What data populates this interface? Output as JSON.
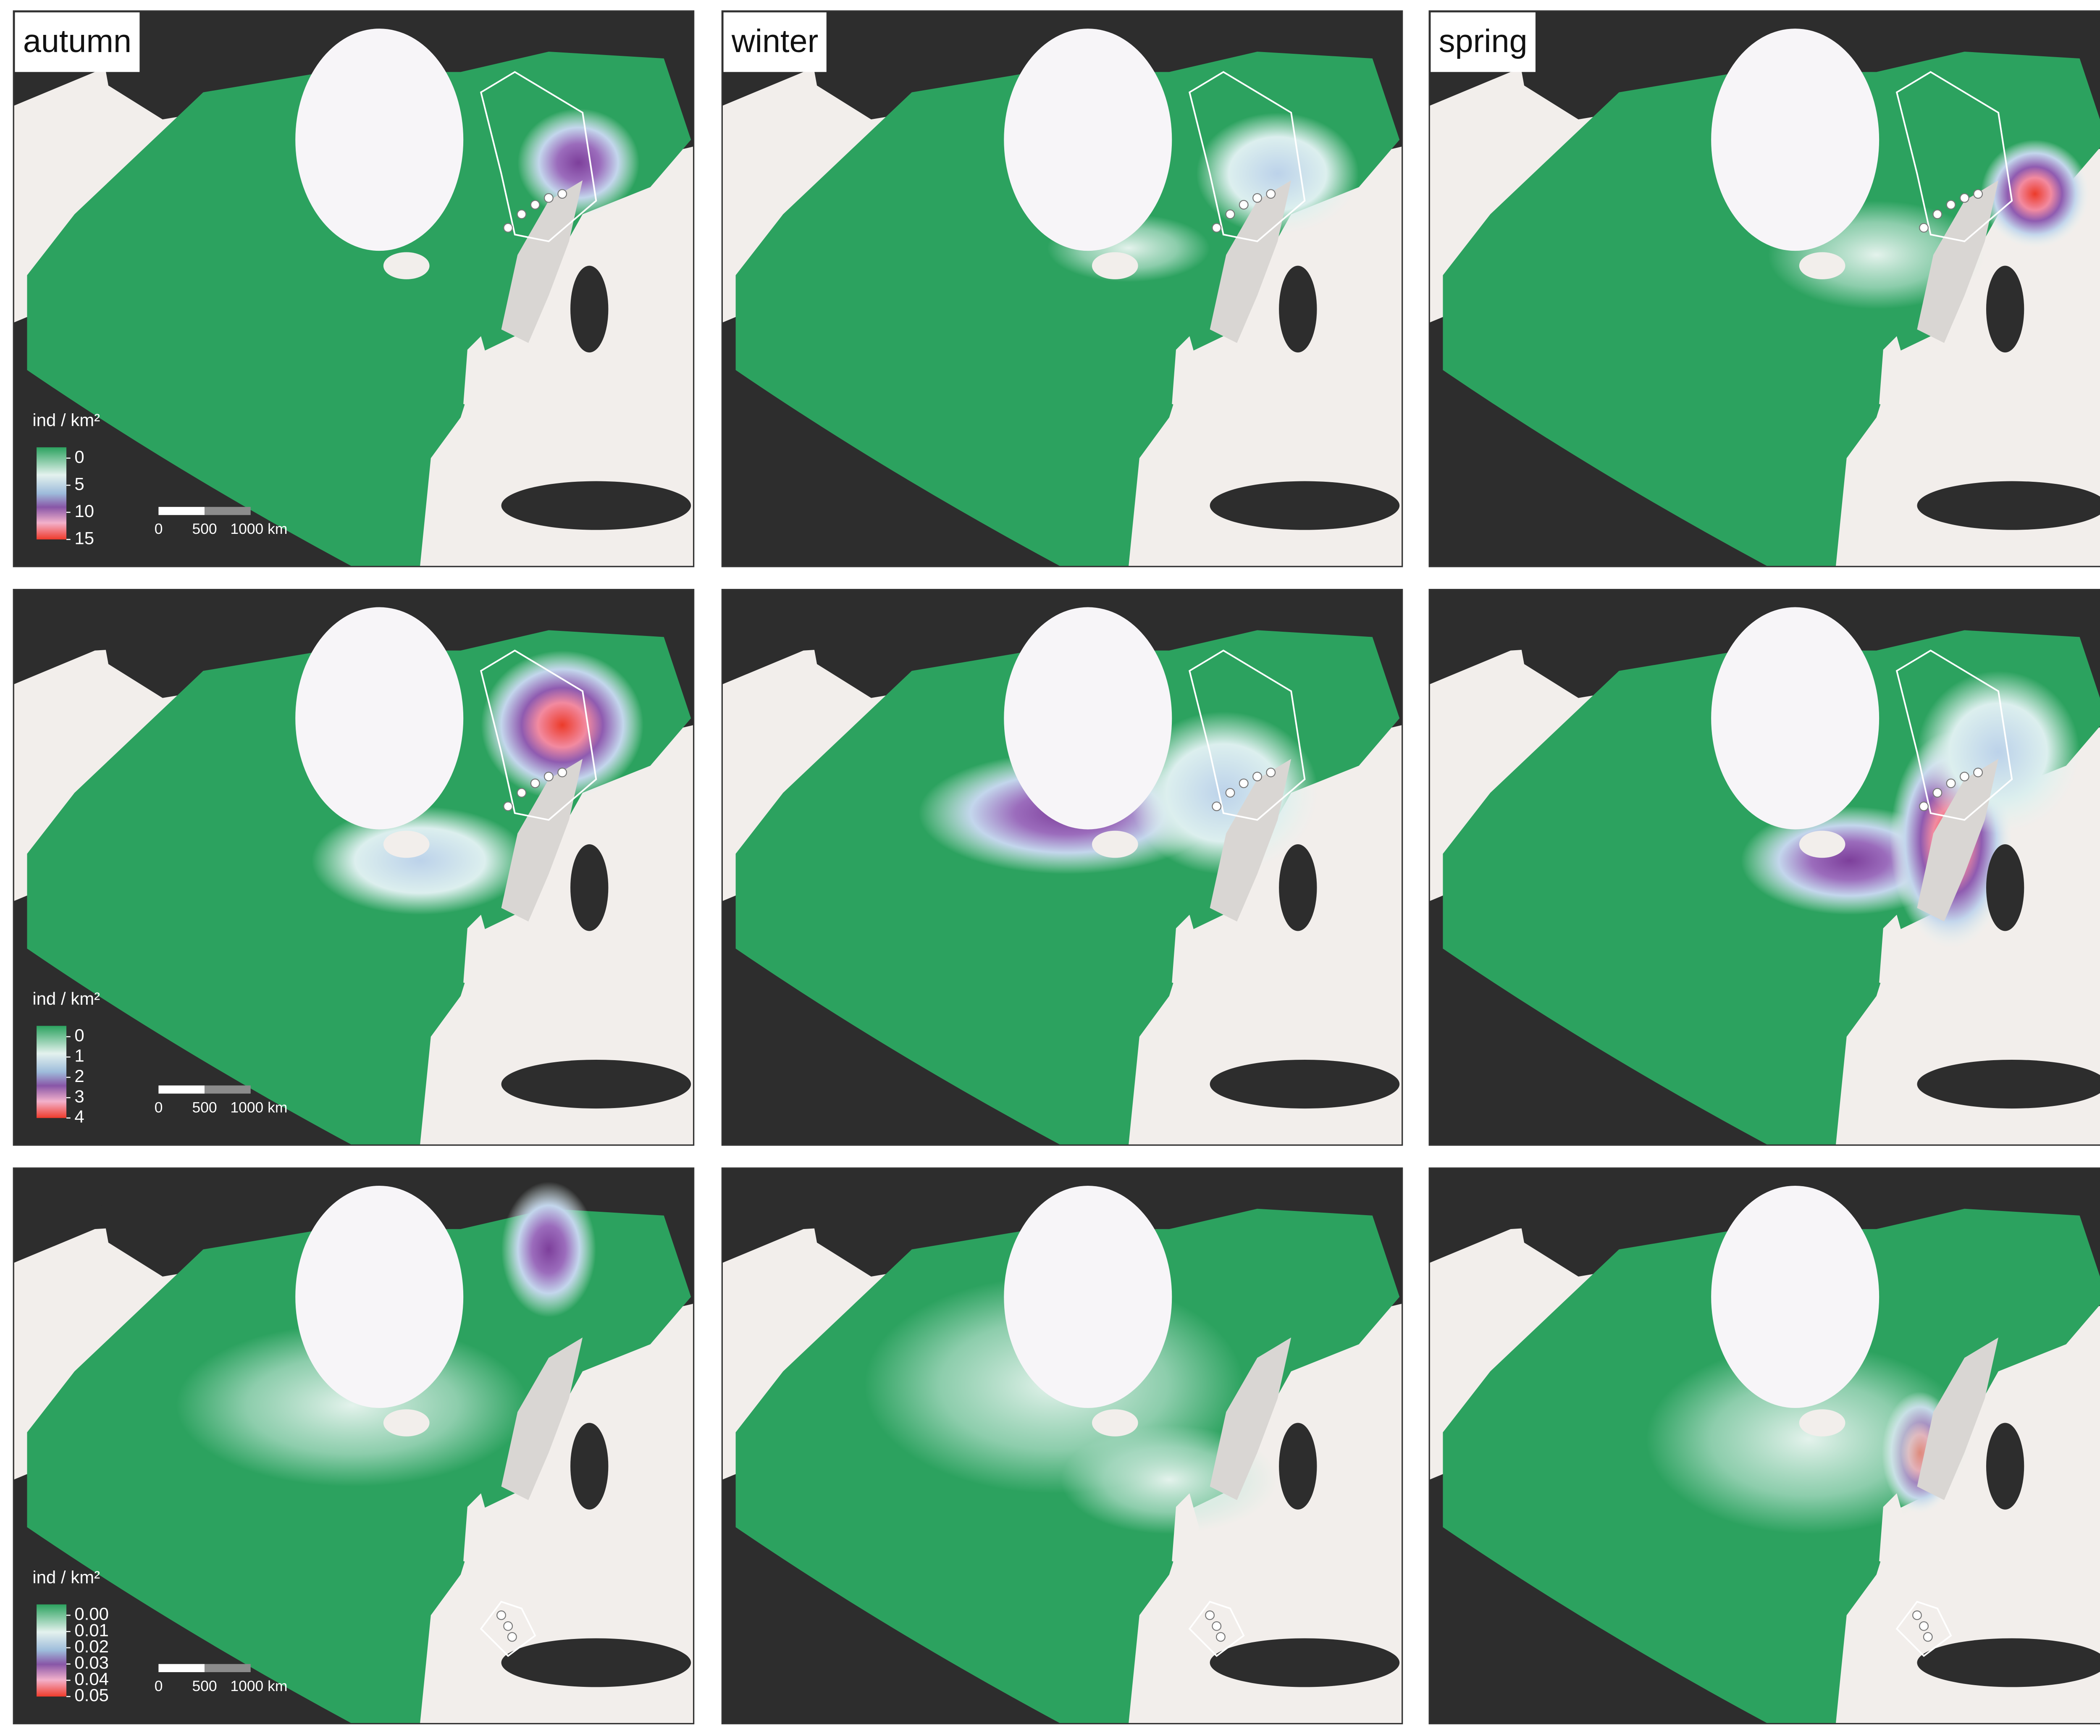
{
  "panels": {
    "columns": [
      "autumn",
      "winter",
      "spring"
    ]
  },
  "legends": [
    {
      "label": "ind / km²",
      "lim": [
        0,
        15
      ],
      "ticks": [
        0,
        5,
        10,
        15
      ]
    },
    {
      "label": "ind / km²",
      "lim": [
        0,
        4
      ],
      "ticks": [
        0,
        1,
        2,
        3,
        4
      ]
    },
    {
      "label": "ind / km²",
      "lim": [
        0,
        0.05
      ],
      "ticks": [
        {
          "value": 0,
          "label": "0.00"
        },
        {
          "value": 0.01,
          "label": "0.01"
        },
        {
          "value": 0.02,
          "label": "0.02"
        },
        {
          "value": 0.03,
          "label": "0.03"
        },
        {
          "value": 0.04,
          "label": "0.04"
        },
        {
          "value": 0.05,
          "label": "0.05"
        }
      ]
    }
  ],
  "scale_bar": {
    "labels": [
      "0",
      "500",
      "1000 km"
    ]
  }
}
